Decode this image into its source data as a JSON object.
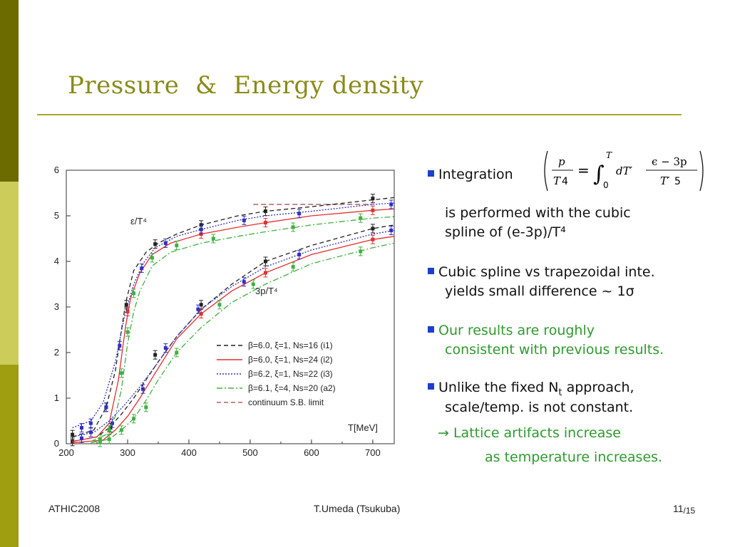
{
  "slide": {
    "title": "Pressure  &  Energy density",
    "footer_left": "ATHIC2008",
    "footer_center": "T.Umeda (Tsukuba)",
    "page_number": "11",
    "page_total": "/15"
  },
  "colors": {
    "sidebar_dark": "#6b6b00",
    "sidebar_light": "#cccc5a",
    "sidebar_mid": "#9e9e10",
    "title": "#8a8a1a",
    "bullet_square": "#1a3fd0",
    "highlight_text": "#2f9a2f"
  },
  "formula": {
    "lhs_num": "p",
    "lhs_den": "T",
    "lhs_den_exp": "4",
    "upper_limit": "T",
    "lower_limit": "0",
    "integrand_d": "dT′",
    "rhs_num": "ϵ − 3p",
    "rhs_den": "T′",
    "rhs_den_exp": "5"
  },
  "bullets": {
    "b1_label": "Integration",
    "b1_line2": "is performed with the cubic",
    "b1_line3": "spline of (e-3p)/T⁴",
    "b2_line1": "Cubic spline vs trapezoidal inte.",
    "b2_line2": "yields small difference ~ 1σ",
    "b3_line1": "Our results are roughly",
    "b3_line2": "consistent with previous results.",
    "b4_line1a": "Unlike the fixed N",
    "b4_line1_sub": "t",
    "b4_line1b": " approach,",
    "b4_line2": "scale/temp. is not constant.",
    "arrow": "→",
    "b5_line1": " Lattice artifacts increase",
    "b5_line2": "as temperature increases."
  },
  "chart_data": {
    "type": "line",
    "xlabel": "T[MeV]",
    "xlim": [
      200,
      735
    ],
    "ylim": [
      0,
      6
    ],
    "x_ticks": [
      200,
      300,
      400,
      500,
      600,
      700
    ],
    "y_ticks": [
      0,
      1,
      2,
      3,
      4,
      5,
      6
    ],
    "curve_labels": [
      "ε/T⁴",
      "3p/T⁴"
    ],
    "legend_position": "bottom-right",
    "sb_limit": 5.25,
    "series": [
      {
        "name": "β=6.0, ξ=1, Ns=16 (i1)",
        "color": "#222222",
        "style": "dashed",
        "eps_x": [
          210,
          245,
          265,
          280,
          290,
          297,
          310,
          330,
          350,
          380,
          420,
          480,
          525,
          600,
          700,
          735
        ],
        "eps_y": [
          0.15,
          0.3,
          0.8,
          1.6,
          2.5,
          3.1,
          3.8,
          4.2,
          4.4,
          4.6,
          4.8,
          5.0,
          5.1,
          5.2,
          5.35,
          5.4
        ],
        "p3_x": [
          210,
          250,
          270,
          290,
          310,
          330,
          350,
          380,
          420,
          470,
          525,
          600,
          700,
          735
        ],
        "p3_y": [
          0.05,
          0.15,
          0.35,
          0.65,
          1.0,
          1.4,
          1.8,
          2.35,
          2.95,
          3.5,
          4.0,
          4.35,
          4.72,
          4.8
        ],
        "points_eps": [
          [
            210,
            0.2
          ],
          [
            265,
            0.8
          ],
          [
            298,
            3.05
          ],
          [
            345,
            4.38
          ],
          [
            420,
            4.8
          ],
          [
            525,
            5.1
          ],
          [
            700,
            5.38
          ]
        ],
        "points_p3": [
          [
            210,
            0.05
          ],
          [
            272,
            0.35
          ],
          [
            345,
            1.95
          ],
          [
            420,
            3.05
          ],
          [
            525,
            4.0
          ],
          [
            700,
            4.72
          ]
        ]
      },
      {
        "name": "β=6.0, ξ=1, Ns=24 (i2)",
        "color": "#e03030",
        "style": "solid",
        "eps_x": [
          210,
          250,
          270,
          285,
          297,
          305,
          320,
          340,
          370,
          420,
          480,
          525,
          600,
          700,
          735
        ],
        "eps_y": [
          0.05,
          0.15,
          0.45,
          1.4,
          2.6,
          3.2,
          3.75,
          4.15,
          4.4,
          4.6,
          4.75,
          4.85,
          5.0,
          5.12,
          5.15
        ],
        "p3_x": [
          210,
          260,
          280,
          300,
          320,
          345,
          380,
          420,
          470,
          525,
          600,
          700,
          735
        ],
        "p3_y": [
          0.02,
          0.08,
          0.3,
          0.6,
          1.0,
          1.55,
          2.3,
          2.85,
          3.35,
          3.75,
          4.15,
          4.48,
          4.55
        ],
        "points_eps": [
          [
            300,
            2.9
          ],
          [
            420,
            4.6
          ],
          [
            525,
            4.85
          ],
          [
            700,
            5.12
          ]
        ],
        "points_p3": [
          [
            420,
            2.85
          ],
          [
            525,
            3.75
          ],
          [
            700,
            4.48
          ]
        ]
      },
      {
        "name": "β=6.2, ξ=1, Ns=22 (i3)",
        "color": "#3030c0",
        "style": "dotted",
        "eps_x": [
          210,
          240,
          260,
          280,
          295,
          310,
          325,
          345,
          380,
          420,
          480,
          525,
          600,
          700,
          735
        ],
        "eps_y": [
          0.35,
          0.5,
          0.9,
          1.8,
          2.8,
          3.5,
          3.95,
          4.3,
          4.55,
          4.7,
          4.9,
          5.0,
          5.1,
          5.25,
          5.28
        ],
        "p3_x": [
          210,
          245,
          270,
          295,
          320,
          345,
          380,
          420,
          470,
          525,
          600,
          700,
          735
        ],
        "p3_y": [
          0.15,
          0.25,
          0.5,
          0.85,
          1.25,
          1.7,
          2.35,
          2.95,
          3.45,
          3.88,
          4.25,
          4.6,
          4.68
        ],
        "points_eps": [
          [
            225,
            0.35
          ],
          [
            240,
            0.45
          ],
          [
            265,
            0.8
          ],
          [
            287,
            2.15
          ],
          [
            323,
            3.85
          ],
          [
            362,
            4.4
          ],
          [
            420,
            4.7
          ],
          [
            490,
            4.9
          ],
          [
            580,
            5.05
          ],
          [
            730,
            5.25
          ]
        ],
        "points_p3": [
          [
            225,
            0.12
          ],
          [
            240,
            0.25
          ],
          [
            275,
            0.45
          ],
          [
            325,
            1.2
          ],
          [
            362,
            2.1
          ],
          [
            415,
            2.95
          ],
          [
            490,
            3.55
          ],
          [
            580,
            4.15
          ],
          [
            730,
            4.68
          ]
        ]
      },
      {
        "name": "β=6.1, ξ=4, Ns=20 (a2)",
        "color": "#40b040",
        "style": "dash-dot",
        "eps_x": [
          240,
          265,
          280,
          290,
          300,
          310,
          320,
          340,
          370,
          420,
          480,
          525,
          600,
          700,
          735
        ],
        "eps_y": [
          0.05,
          0.2,
          0.6,
          1.2,
          2.2,
          2.9,
          3.35,
          3.9,
          4.2,
          4.4,
          4.55,
          4.65,
          4.8,
          4.95,
          4.98
        ],
        "p3_x": [
          240,
          270,
          290,
          310,
          330,
          350,
          380,
          420,
          470,
          525,
          600,
          700,
          735
        ],
        "p3_y": [
          0.02,
          0.1,
          0.3,
          0.55,
          0.95,
          1.4,
          2.0,
          2.55,
          3.1,
          3.5,
          3.95,
          4.3,
          4.4
        ],
        "points_eps": [
          [
            255,
            0.1
          ],
          [
            270,
            0.3
          ],
          [
            290,
            1.55
          ],
          [
            300,
            2.45
          ],
          [
            310,
            3.3
          ],
          [
            340,
            4.08
          ],
          [
            380,
            4.35
          ],
          [
            440,
            4.5
          ],
          [
            570,
            4.75
          ],
          [
            680,
            4.95
          ]
        ],
        "points_p3": [
          [
            255,
            0.03
          ],
          [
            270,
            0.1
          ],
          [
            290,
            0.3
          ],
          [
            310,
            0.55
          ],
          [
            330,
            0.8
          ],
          [
            380,
            2.0
          ],
          [
            450,
            3.05
          ],
          [
            505,
            3.5
          ],
          [
            570,
            3.88
          ],
          [
            680,
            4.22
          ]
        ]
      }
    ]
  }
}
